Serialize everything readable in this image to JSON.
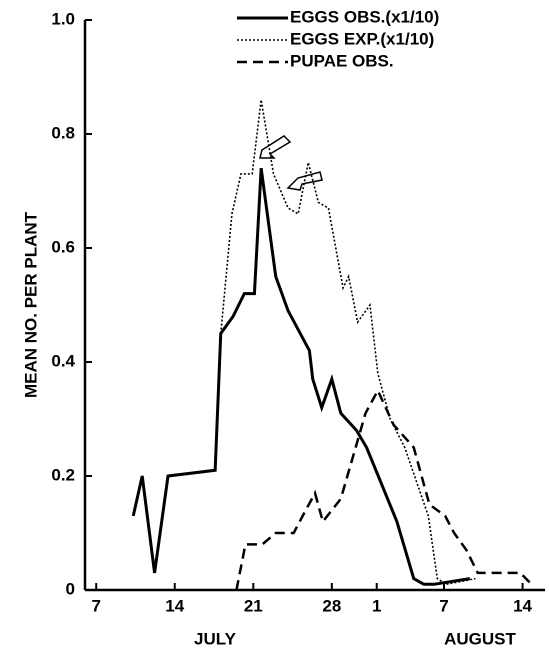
{
  "chart_data": {
    "type": "line",
    "y_label": "MEAN NO. PER PLANT",
    "month_labels": [
      "JULY",
      "AUGUST"
    ],
    "xlim": [
      6,
      47
    ],
    "ylim": [
      0,
      1.0
    ],
    "xticks": [
      7,
      14,
      21,
      28,
      {
        "value": 32,
        "label": "1"
      },
      {
        "value": 38,
        "label": "7"
      },
      {
        "value": 45,
        "label": "14"
      }
    ],
    "yticks": [
      0,
      {
        "value": 0.2,
        "label": "0.2"
      },
      {
        "value": 0.4,
        "label": "0.4"
      },
      {
        "value": 0.6,
        "label": "0.6"
      },
      {
        "value": 0.8,
        "label": "0.8"
      },
      {
        "value": 1.0,
        "label": "1.0"
      }
    ],
    "series": [
      {
        "name": "EGGS OBS.(x1/10)",
        "color": "#000000",
        "style": "solid",
        "x": [
          10.3,
          11.1,
          12.2,
          13.4,
          17.6,
          18.1,
          19.2,
          20.2,
          21.1,
          21.7,
          23.0,
          24.1,
          26.0,
          26.3,
          27.1,
          28.0,
          28.8,
          30.2,
          31.1,
          33.8,
          35.3,
          36.2,
          37.1,
          40.3
        ],
        "values": [
          0.13,
          0.2,
          0.03,
          0.2,
          0.21,
          0.45,
          0.48,
          0.52,
          0.52,
          0.74,
          0.55,
          0.49,
          0.42,
          0.37,
          0.32,
          0.37,
          0.31,
          0.28,
          0.25,
          0.12,
          0.02,
          0.01,
          0.01,
          0.02
        ]
      },
      {
        "name": "EGGS EXP.(x1/10)",
        "color": "#000000",
        "style": "dotted",
        "x": [
          18.1,
          19.1,
          19.9,
          20.9,
          21.7,
          22.8,
          24.1,
          25.0,
          25.9,
          26.8,
          27.7,
          29.0,
          29.5,
          30.3,
          31.4,
          32.1,
          33.2,
          34.5,
          36.6,
          37.4,
          38.2,
          40.8
        ],
        "values": [
          0.45,
          0.66,
          0.73,
          0.73,
          0.86,
          0.73,
          0.67,
          0.66,
          0.75,
          0.68,
          0.67,
          0.53,
          0.55,
          0.47,
          0.5,
          0.38,
          0.3,
          0.25,
          0.13,
          0.02,
          0.01,
          0.02
        ]
      },
      {
        "name": "PUPAE OBS.",
        "color": "#000000",
        "style": "dashed",
        "x": [
          19.5,
          20.3,
          21.8,
          23.0,
          24.6,
          25.4,
          26.5,
          27.2,
          28.8,
          31.0,
          32.1,
          33.5,
          35.3,
          36.7,
          38.1,
          38.9,
          40.0,
          41.0,
          42.5,
          44.8,
          45.8
        ],
        "values": [
          0,
          0.08,
          0.08,
          0.1,
          0.1,
          0.13,
          0.17,
          0.12,
          0.16,
          0.31,
          0.35,
          0.29,
          0.25,
          0.15,
          0.13,
          0.1,
          0.07,
          0.03,
          0.03,
          0.03,
          0.01
        ]
      }
    ]
  }
}
